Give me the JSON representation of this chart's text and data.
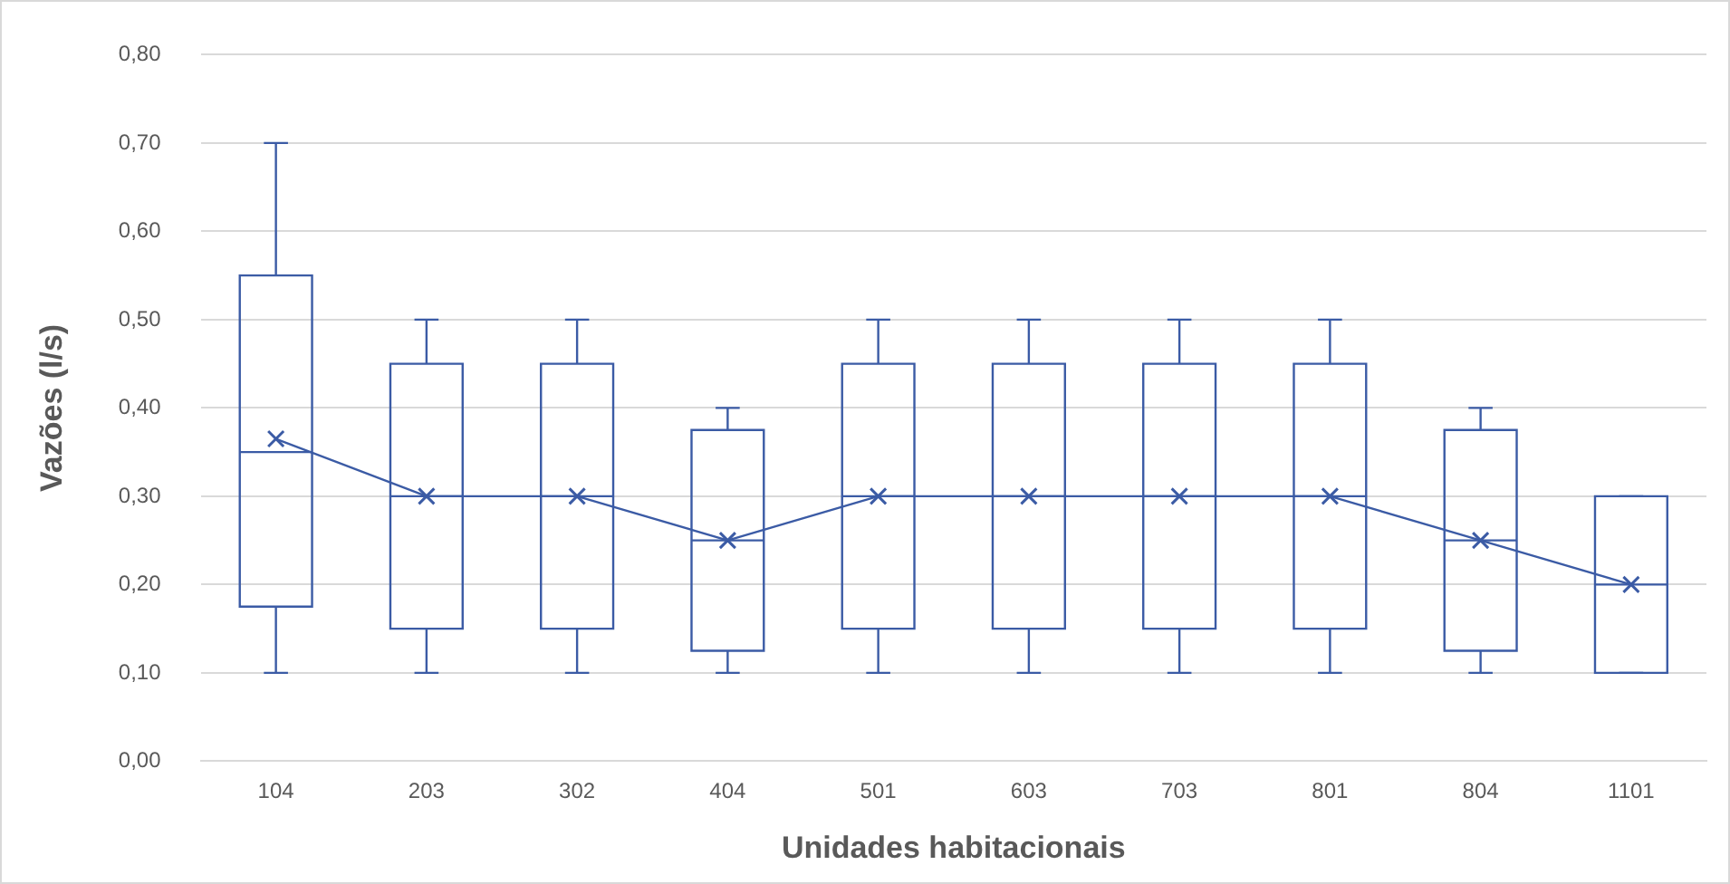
{
  "chart_data": {
    "type": "box",
    "xlabel": "Unidades habitacionais",
    "ylabel": "Vazões (l/s)",
    "categories": [
      "104",
      "203",
      "302",
      "404",
      "501",
      "603",
      "703",
      "801",
      "804",
      "1101"
    ],
    "color": "#3b5ba5",
    "boxes": [
      {
        "low": 0.1,
        "q1": 0.175,
        "median": 0.35,
        "q3": 0.55,
        "high": 0.7
      },
      {
        "low": 0.1,
        "q1": 0.15,
        "median": 0.3,
        "q3": 0.45,
        "high": 0.5
      },
      {
        "low": 0.1,
        "q1": 0.15,
        "median": 0.3,
        "q3": 0.45,
        "high": 0.5
      },
      {
        "low": 0.1,
        "q1": 0.125,
        "median": 0.25,
        "q3": 0.375,
        "high": 0.4
      },
      {
        "low": 0.1,
        "q1": 0.15,
        "median": 0.3,
        "q3": 0.45,
        "high": 0.5
      },
      {
        "low": 0.1,
        "q1": 0.15,
        "median": 0.3,
        "q3": 0.45,
        "high": 0.5
      },
      {
        "low": 0.1,
        "q1": 0.15,
        "median": 0.3,
        "q3": 0.45,
        "high": 0.5
      },
      {
        "low": 0.1,
        "q1": 0.15,
        "median": 0.3,
        "q3": 0.45,
        "high": 0.5
      },
      {
        "low": 0.1,
        "q1": 0.125,
        "median": 0.25,
        "q3": 0.375,
        "high": 0.4
      },
      {
        "low": 0.1,
        "q1": 0.1,
        "median": 0.2,
        "q3": 0.3,
        "high": 0.3
      }
    ],
    "series": [
      {
        "type": "line",
        "color": "#3b5ba5",
        "marker": "cross",
        "values": [
          0.365,
          0.3,
          0.3,
          0.25,
          0.3,
          0.3,
          0.3,
          0.3,
          0.25,
          0.2
        ]
      }
    ],
    "ylim": [
      0,
      0.8
    ],
    "yticks": [
      {
        "value": 0,
        "label": "0,00"
      },
      {
        "value": 0.1,
        "label": "0,10"
      },
      {
        "value": 0.2,
        "label": "0,20"
      },
      {
        "value": 0.3,
        "label": "0,30"
      },
      {
        "value": 0.4,
        "label": "0,40"
      },
      {
        "value": 0.5,
        "label": "0,50"
      },
      {
        "value": 0.6,
        "label": "0,60"
      },
      {
        "value": 0.7,
        "label": "0,70"
      },
      {
        "value": 0.8,
        "label": "0,80"
      }
    ],
    "grid": "y",
    "legend": false
  }
}
